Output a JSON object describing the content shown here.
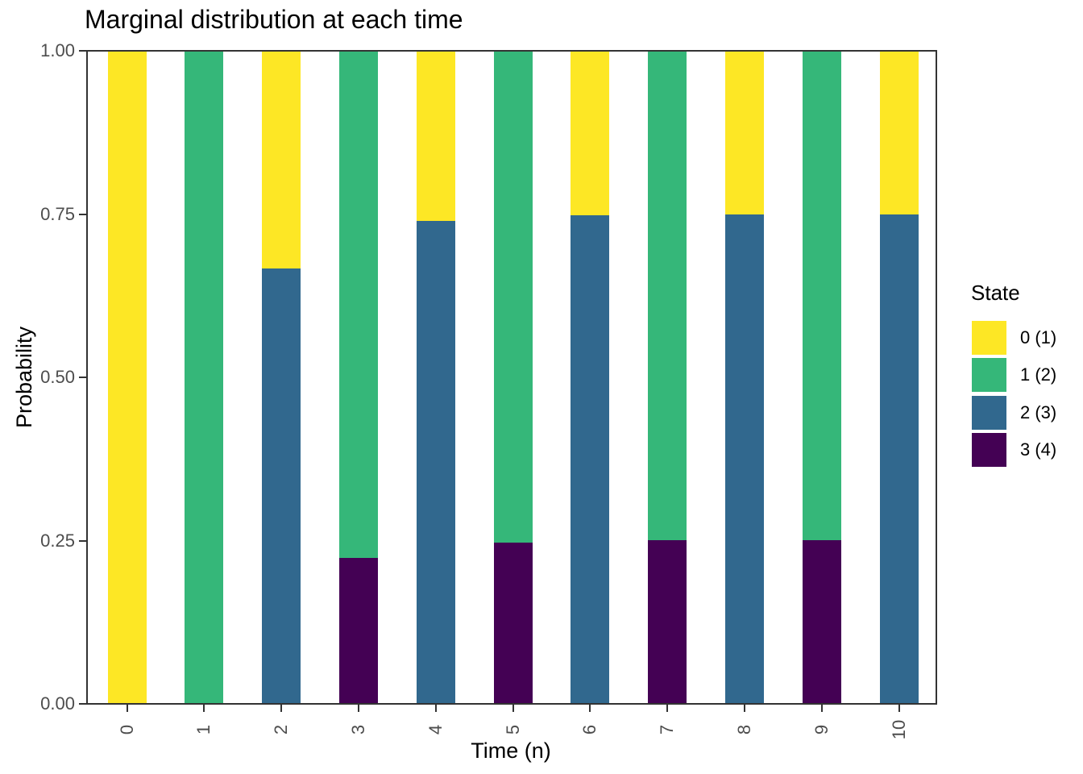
{
  "chart_data": {
    "type": "bar",
    "stacked": true,
    "title": "Marginal distribution at each time",
    "xlabel": "Time (n)",
    "ylabel": "Probability",
    "x": [
      0,
      1,
      2,
      3,
      4,
      5,
      6,
      7,
      8,
      9,
      10
    ],
    "x_tick_labels": [
      "0",
      "1",
      "2",
      "3",
      "4",
      "5",
      "6",
      "7",
      "8",
      "9",
      "10"
    ],
    "y_tick_labels_top_to_bottom": [
      "1.00",
      "0.75",
      "0.50",
      "0.25",
      "0.00"
    ],
    "ylim": [
      0,
      1
    ],
    "grid": false,
    "background": "#ffffff",
    "panel_border_color": "#333333",
    "axis_text_color": "#4d4d4d",
    "bar_width_fraction": 0.5,
    "x_tick_label_angle_deg": 90,
    "legend_position": "right",
    "legend": {
      "title": "State",
      "entries": [
        {
          "label": "0 (1)",
          "color": "#FDE725"
        },
        {
          "label": "1 (2)",
          "color": "#35B779"
        },
        {
          "label": "2 (3)",
          "color": "#31688E"
        },
        {
          "label": "3 (4)",
          "color": "#440154"
        }
      ]
    },
    "series": [
      {
        "name": "0 (1)",
        "color": "#FDE725",
        "values": [
          1,
          0,
          0.3333,
          0,
          0.2593,
          0,
          0.251,
          0,
          0.2501,
          0,
          0.25
        ]
      },
      {
        "name": "1 (2)",
        "color": "#35B779",
        "values": [
          0,
          1,
          0,
          0.7778,
          0,
          0.7531,
          0,
          0.7504,
          0,
          0.75,
          0
        ]
      },
      {
        "name": "2 (3)",
        "color": "#31688E",
        "values": [
          0,
          0,
          0.6667,
          0,
          0.7407,
          0,
          0.749,
          0,
          0.7499,
          0,
          0.75
        ]
      },
      {
        "name": "3 (4)",
        "color": "#440154",
        "values": [
          0,
          0,
          0,
          0.2222,
          0,
          0.2469,
          0,
          0.2496,
          0,
          0.25,
          0
        ]
      }
    ],
    "stack_order_bottom_to_top": [
      "3 (4)",
      "2 (3)",
      "1 (2)",
      "0 (1)"
    ]
  }
}
